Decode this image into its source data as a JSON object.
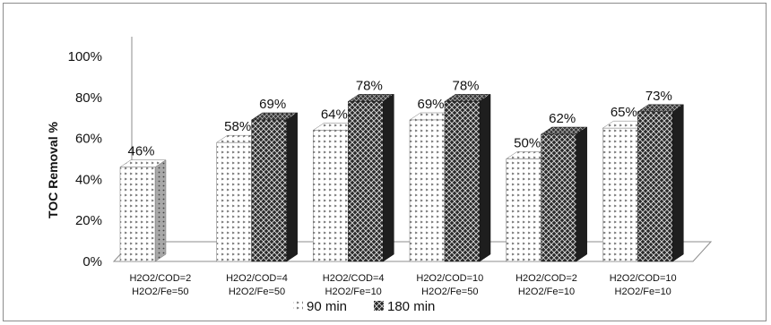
{
  "chart_data": {
    "type": "bar",
    "style": "3d-clustered-column",
    "categories": [
      [
        "H2O2/COD=2",
        "H2O2/Fe=50"
      ],
      [
        "H2O2/COD=4",
        "H2O2/Fe=50"
      ],
      [
        "H2O2/COD=4",
        "H2O2/Fe=10"
      ],
      [
        "H2O2/COD=10",
        "H2O2/Fe=50"
      ],
      [
        "H2O2/COD=2",
        "H2O2/Fe=10"
      ],
      [
        "H2O2/COD=10",
        "H2O2/Fe=10"
      ]
    ],
    "series": [
      {
        "name": "90 min",
        "values": [
          46,
          58,
          64,
          69,
          50,
          65
        ],
        "labels": [
          "46%",
          "58%",
          "64%",
          "69%",
          "50%",
          "65%"
        ],
        "pattern": "dotted-light"
      },
      {
        "name": "180 min",
        "values": [
          null,
          69,
          78,
          78,
          62,
          73
        ],
        "labels": [
          "",
          "69%",
          "78%",
          "78%",
          "62%",
          "73%"
        ],
        "pattern": "crosshatch-dark"
      }
    ],
    "title": "",
    "ylabel": "TOC Removal %",
    "xlabel": "",
    "ylim": [
      0,
      100
    ],
    "yticks": [
      "0%",
      "20%",
      "40%",
      "60%",
      "80%",
      "100%"
    ],
    "grid": false,
    "legend": "bottom"
  }
}
